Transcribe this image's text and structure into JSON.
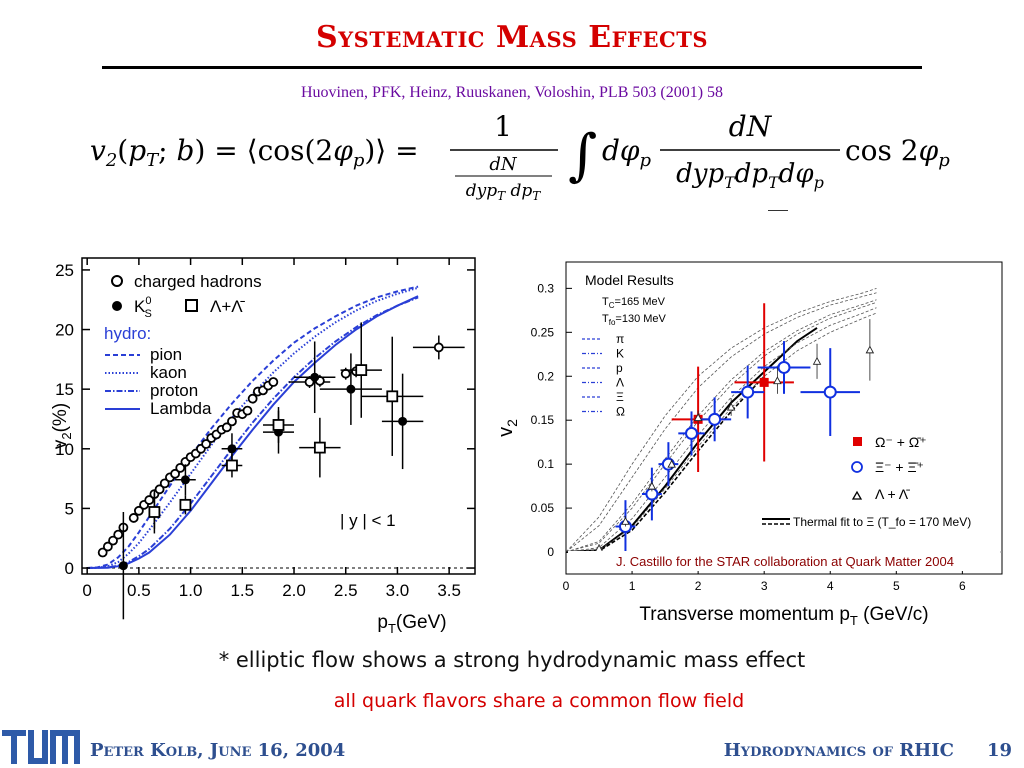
{
  "slide": {
    "title": "Systematic Mass Effects",
    "reference": "Huovinen, PFK, Heinz, Ruuskanen, Voloshin, PLB 503 (2001) 58",
    "formula": {
      "lhs": "v₂(p_T; b) = ⟨cos(2φ_p)⟩ =",
      "numerator_one": "1",
      "inner_num": "dN",
      "inner_den": "dyp_T dp_T",
      "integral": "∫ dφ_p",
      "frac_num": "dN",
      "frac_den": "dyp_T dp_T dφ_p",
      "tail": "cos 2φ_p"
    },
    "bullet": "* elliptic flow shows a strong hydrodynamic mass effect",
    "sub_bullet": "all quark flavors share a common flow field",
    "footer_left": "Peter Kolb, June 16, 2004",
    "footer_right": "Hydrodynamics of RHIC",
    "page_number": "19",
    "logo_text": "TUM",
    "colors": {
      "title": "#d40000",
      "reference": "#6a0aa0",
      "footer": "#2e4f8f",
      "hydro": "#2a3fd6",
      "star_red": "#e00000"
    }
  },
  "chart_data": [
    {
      "type": "scatter",
      "xlabel": "p_T(GeV)",
      "ylabel": "v_2(%)",
      "xlim": [
        -0.05,
        3.75
      ],
      "ylim": [
        -0.5,
        26
      ],
      "x_ticks": [
        "0",
        "0.5",
        "1.0",
        "1.5",
        "2.0",
        "2.5",
        "3.0",
        "3.5"
      ],
      "y_ticks": [
        "0",
        "5",
        "10",
        "15",
        "20",
        "25"
      ],
      "legend": {
        "markers": [
          {
            "label": "charged hadrons",
            "marker": "open-circle"
          },
          {
            "label": "K",
            "label_super": "0",
            "label_sub": "S",
            "marker": "filled-circle"
          },
          {
            "label": "Λ+Λ̄",
            "marker": "open-square"
          }
        ],
        "hydro_header": "hydro:",
        "lines": [
          {
            "label": "pion",
            "style": "dashed"
          },
          {
            "label": "kaon",
            "style": "dotted"
          },
          {
            "label": "proton",
            "style": "dash-dot"
          },
          {
            "label": "Lambda",
            "style": "solid"
          }
        ]
      },
      "annotation": "| y | < 1",
      "series": [
        {
          "name": "charged hadrons",
          "marker": "open-circle",
          "x": [
            0.15,
            0.2,
            0.25,
            0.3,
            0.35,
            0.45,
            0.5,
            0.55,
            0.6,
            0.65,
            0.7,
            0.75,
            0.8,
            0.85,
            0.9,
            0.95,
            1.0,
            1.05,
            1.1,
            1.15,
            1.2,
            1.25,
            1.3,
            1.35,
            1.4,
            1.45,
            1.5,
            1.55,
            1.6,
            1.65,
            1.7,
            1.75,
            1.8,
            2.15,
            2.25,
            2.5,
            2.6,
            3.4
          ],
          "y": [
            1.3,
            1.8,
            2.3,
            2.8,
            3.4,
            4.2,
            4.8,
            5.3,
            5.7,
            6.2,
            6.6,
            7.1,
            7.6,
            7.9,
            8.4,
            8.9,
            9.3,
            9.6,
            10.0,
            10.4,
            10.9,
            11.2,
            11.6,
            11.8,
            12.3,
            13.0,
            12.9,
            13.2,
            14.2,
            14.8,
            14.9,
            15.3,
            15.6,
            15.6,
            15.7,
            16.3,
            16.5,
            18.5
          ],
          "yerr": [
            0.3,
            0.3,
            0.3,
            0.3,
            0.3,
            0.3,
            0.3,
            0.3,
            0.3,
            0.3,
            0.3,
            0.3,
            0.3,
            0.3,
            0.3,
            0.3,
            0.3,
            0.3,
            0.3,
            0.3,
            0.3,
            0.3,
            0.3,
            0.3,
            0.3,
            0.3,
            0.3,
            0.3,
            0.3,
            0.3,
            0.3,
            0.3,
            0.3,
            0.5,
            0.5,
            0.5,
            0.5,
            1.0
          ],
          "xerr": [
            0,
            0,
            0,
            0,
            0,
            0,
            0,
            0,
            0,
            0,
            0,
            0,
            0,
            0,
            0,
            0,
            0,
            0,
            0,
            0,
            0,
            0,
            0,
            0,
            0,
            0,
            0,
            0,
            0,
            0,
            0,
            0,
            0,
            0.2,
            0,
            0,
            0,
            0.25
          ]
        },
        {
          "name": "K0S",
          "marker": "filled-circle",
          "x": [
            0.35,
            0.65,
            0.95,
            1.4,
            1.85,
            2.2,
            2.55,
            3.05
          ],
          "y": [
            0.2,
            4.8,
            7.4,
            10.0,
            11.4,
            16.0,
            15.0,
            12.3
          ],
          "yerr": [
            4.5,
            1.5,
            1.3,
            1.3,
            1.8,
            3.0,
            3.0,
            4.0
          ],
          "xerr": [
            0,
            0.05,
            0.1,
            0.1,
            0.15,
            0.2,
            0.3,
            0.2
          ]
        },
        {
          "name": "Lambda+antiLambda",
          "marker": "open-square",
          "x": [
            0.65,
            0.95,
            1.4,
            1.85,
            2.25,
            2.65,
            2.95
          ],
          "y": [
            4.7,
            5.3,
            8.6,
            12.0,
            10.1,
            16.6,
            14.4
          ],
          "yerr": [
            1.8,
            0.8,
            1.0,
            1.5,
            2.5,
            4.0,
            5.0
          ],
          "xerr": [
            0.05,
            0.05,
            0.1,
            0.15,
            0.2,
            0.2,
            0.3
          ]
        }
      ],
      "curves": [
        {
          "name": "pion",
          "style": "dashed",
          "x": [
            0,
            0.1,
            0.2,
            0.3,
            0.4,
            0.5,
            0.6,
            0.8,
            1.0,
            1.2,
            1.4,
            1.6,
            1.8,
            2.0,
            2.2,
            2.4,
            2.6,
            2.8,
            3.0,
            3.2
          ],
          "y": [
            0,
            0.05,
            0.3,
            0.9,
            1.8,
            3.0,
            4.3,
            6.9,
            9.4,
            11.7,
            13.8,
            15.7,
            17.4,
            18.9,
            20.1,
            21.1,
            22.0,
            22.7,
            23.2,
            23.6
          ]
        },
        {
          "name": "kaon",
          "style": "dotted",
          "x": [
            0,
            0.1,
            0.2,
            0.3,
            0.4,
            0.5,
            0.6,
            0.8,
            1.0,
            1.2,
            1.4,
            1.6,
            1.8,
            2.0,
            2.2,
            2.4,
            2.6,
            2.8,
            3.0,
            3.2
          ],
          "y": [
            0,
            0.02,
            0.15,
            0.5,
            1.2,
            2.1,
            3.2,
            5.5,
            7.9,
            10.3,
            12.6,
            14.6,
            16.4,
            18.0,
            19.4,
            20.6,
            21.6,
            22.4,
            23.0,
            23.5
          ]
        },
        {
          "name": "proton",
          "style": "dash-dot",
          "x": [
            0,
            0.2,
            0.3,
            0.4,
            0.5,
            0.6,
            0.8,
            1.0,
            1.2,
            1.4,
            1.6,
            1.8,
            2.0,
            2.2,
            2.4,
            2.6,
            2.8,
            3.0,
            3.2
          ],
          "y": [
            0,
            0.05,
            0.2,
            0.5,
            1.0,
            1.6,
            3.3,
            5.4,
            7.7,
            10.0,
            12.2,
            14.2,
            16.0,
            17.6,
            19.0,
            20.2,
            21.2,
            22.0,
            22.7
          ]
        },
        {
          "name": "Lambda",
          "style": "solid",
          "x": [
            0,
            0.2,
            0.3,
            0.4,
            0.5,
            0.6,
            0.8,
            1.0,
            1.2,
            1.4,
            1.6,
            1.8,
            2.0,
            2.2,
            2.4,
            2.6,
            2.8,
            3.0,
            3.2
          ],
          "y": [
            0,
            0.03,
            0.15,
            0.4,
            0.8,
            1.3,
            2.8,
            4.8,
            7.1,
            9.4,
            11.6,
            13.7,
            15.6,
            17.2,
            18.7,
            20.0,
            21.1,
            22.0,
            22.8
          ]
        }
      ]
    },
    {
      "type": "scatter",
      "title": "Model Results",
      "xlabel": "Transverse momentum p_T (GeV/c)",
      "ylabel": "v_2",
      "xlim": [
        0,
        6.6
      ],
      "ylim": [
        -0.025,
        0.33
      ],
      "x_ticks": [
        "0",
        "1",
        "2",
        "3",
        "4",
        "5",
        "6"
      ],
      "y_ticks": [
        "0",
        "0.05",
        "0.1",
        "0.15",
        "0.2",
        "0.25",
        "0.3"
      ],
      "model_params": [
        "T_C=165 MeV",
        "T_fo=130 MeV"
      ],
      "model_legend": [
        "π",
        "K",
        "p",
        "Λ",
        "Ξ",
        "Ω"
      ],
      "marker_legend": [
        "Ω⁻ + Ω̄⁺",
        "Ξ⁻ + Ξ̄⁺",
        "Λ + Λ̄"
      ],
      "fit_label": "Thermal fit to Ξ (T_fo = 170 MeV)",
      "credit": "J. Castillo for the STAR collaboration at Quark Matter 2004",
      "series": [
        {
          "name": "Omega",
          "marker": "filled-square",
          "color": "#e00000",
          "x": [
            2.0,
            3.0
          ],
          "y": [
            0.151,
            0.193
          ],
          "yerr": [
            0.06,
            0.09
          ],
          "xerr": [
            0.4,
            0.45
          ]
        },
        {
          "name": "Xi",
          "marker": "open-circle",
          "color": "#1030e0",
          "x": [
            0.9,
            1.3,
            1.55,
            1.9,
            2.25,
            2.75,
            3.3,
            4.0
          ],
          "y": [
            0.029,
            0.066,
            0.1,
            0.135,
            0.151,
            0.182,
            0.21,
            0.182
          ],
          "yerr": [
            0.03,
            0.03,
            0.025,
            0.025,
            0.025,
            0.03,
            0.03,
            0.05
          ],
          "xerr": [
            0.15,
            0.15,
            0.15,
            0.2,
            0.25,
            0.25,
            0.4,
            0.45
          ]
        },
        {
          "name": "Lambda",
          "marker": "open-triangle",
          "color": "#222222",
          "x": [
            0.5,
            0.9,
            1.3,
            1.6,
            2.0,
            2.5,
            3.2,
            3.8,
            4.6
          ],
          "y": [
            0.004,
            0.035,
            0.075,
            0.1,
            0.153,
            0.165,
            0.195,
            0.217,
            0.23
          ],
          "yerr": [
            0.005,
            0.006,
            0.006,
            0.006,
            0.008,
            0.01,
            0.015,
            0.02,
            0.035
          ]
        }
      ],
      "curves": [
        {
          "name": "thermal-fit",
          "style": "solid",
          "x": [
            0,
            0.5,
            1.0,
            1.5,
            2.0,
            2.5,
            3.0,
            3.5,
            3.8
          ],
          "y": [
            0,
            0.002,
            0.03,
            0.075,
            0.125,
            0.17,
            0.205,
            0.24,
            0.255
          ]
        },
        {
          "name": "thermal-fit-dashed",
          "style": "dashed",
          "x": [
            0,
            0.5,
            1.0,
            1.5,
            2.0,
            2.5,
            3.0
          ],
          "y": [
            0,
            0.001,
            0.025,
            0.068,
            0.115,
            0.16,
            0.2
          ]
        },
        {
          "name": "pion",
          "style": "thin-dashed",
          "x": [
            0,
            0.5,
            1.0,
            1.5,
            2.0,
            2.5,
            3.0,
            3.5,
            4.0,
            4.5,
            4.7
          ],
          "y": [
            0,
            0.04,
            0.1,
            0.155,
            0.2,
            0.232,
            0.255,
            0.272,
            0.285,
            0.295,
            0.3
          ]
        },
        {
          "name": "kaon",
          "style": "thin-dashed",
          "x": [
            0,
            0.5,
            1.0,
            1.5,
            2.0,
            2.5,
            3.0,
            3.5,
            4.0,
            4.5,
            4.7
          ],
          "y": [
            0,
            0.03,
            0.085,
            0.14,
            0.187,
            0.222,
            0.248,
            0.267,
            0.281,
            0.291,
            0.295
          ]
        },
        {
          "name": "proton",
          "style": "thin-dashed",
          "x": [
            0,
            0.5,
            1.0,
            1.5,
            2.0,
            2.5,
            3.0,
            3.5,
            4.0,
            4.5,
            4.7
          ],
          "y": [
            0,
            0.012,
            0.055,
            0.106,
            0.155,
            0.196,
            0.228,
            0.252,
            0.27,
            0.282,
            0.287
          ]
        },
        {
          "name": "Lambda",
          "style": "thin-dashed",
          "x": [
            0,
            0.5,
            1.0,
            1.5,
            2.0,
            2.5,
            3.0,
            3.5,
            4.0,
            4.5,
            4.7
          ],
          "y": [
            0,
            0.01,
            0.05,
            0.1,
            0.149,
            0.19,
            0.223,
            0.248,
            0.266,
            0.279,
            0.284
          ]
        },
        {
          "name": "Xi",
          "style": "thin-dashed",
          "x": [
            0,
            0.5,
            1.0,
            1.5,
            2.0,
            2.5,
            3.0,
            3.5,
            4.0,
            4.5,
            4.7
          ],
          "y": [
            0,
            0.005,
            0.038,
            0.085,
            0.133,
            0.176,
            0.211,
            0.238,
            0.258,
            0.272,
            0.278
          ]
        },
        {
          "name": "Omega",
          "style": "thin-dashed",
          "x": [
            0,
            0.5,
            1.0,
            1.5,
            2.0,
            2.5,
            3.0,
            3.5,
            4.0,
            4.5,
            4.7
          ],
          "y": [
            0,
            0.002,
            0.028,
            0.072,
            0.12,
            0.164,
            0.2,
            0.229,
            0.25,
            0.266,
            0.272
          ]
        }
      ]
    }
  ]
}
